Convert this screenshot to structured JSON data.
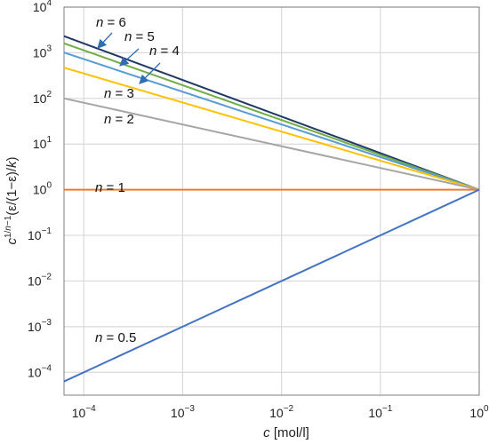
{
  "chart_data": {
    "type": "line",
    "xscale": "log",
    "yscale": "log",
    "xlim": [
      6.31e-05,
      1
    ],
    "ylim": [
      3.16e-05,
      10000
    ],
    "grid": true,
    "xlabel_var": "c",
    "xlabel_unit": " [mol/l]",
    "ylabel": "c^{1/n−1}(ε/(1−ε)/k)",
    "x_ticks": [
      {
        "base": "10",
        "exp": "−4",
        "value": 0.0001
      },
      {
        "base": "10",
        "exp": "−3",
        "value": 0.001
      },
      {
        "base": "10",
        "exp": "−2",
        "value": 0.01
      },
      {
        "base": "10",
        "exp": "−1",
        "value": 0.1
      },
      {
        "base": "10",
        "exp": "0",
        "value": 1
      }
    ],
    "y_ticks": [
      {
        "base": "10",
        "exp": "4",
        "value": 10000
      },
      {
        "base": "10",
        "exp": "3",
        "value": 1000
      },
      {
        "base": "10",
        "exp": "2",
        "value": 100
      },
      {
        "base": "10",
        "exp": "1",
        "value": 10
      },
      {
        "base": "10",
        "exp": "0",
        "value": 1
      },
      {
        "base": "10",
        "exp": "−1",
        "value": 0.1
      },
      {
        "base": "10",
        "exp": "−2",
        "value": 0.01
      },
      {
        "base": "10",
        "exp": "−3",
        "value": 0.001
      },
      {
        "base": "10",
        "exp": "−4",
        "value": 0.0001
      }
    ],
    "series": [
      {
        "name": "n = 6",
        "n": 6,
        "color": "#1f3864",
        "x": [
          6.31e-05,
          1
        ],
        "y": [
          2318,
          1
        ]
      },
      {
        "name": "n = 5",
        "n": 5,
        "color": "#70ad47",
        "x": [
          6.31e-05,
          1
        ],
        "y": [
          1604,
          1
        ]
      },
      {
        "name": "n = 4",
        "n": 4,
        "color": "#5b9bd5",
        "x": [
          6.31e-05,
          1
        ],
        "y": [
          1009,
          1
        ]
      },
      {
        "name": "n = 3",
        "n": 3,
        "color": "#ffc000",
        "x": [
          6.31e-05,
          1
        ],
        "y": [
          472,
          1
        ]
      },
      {
        "name": "n = 2",
        "n": 2,
        "color": "#a5a5a5",
        "x": [
          6.31e-05,
          1
        ],
        "y": [
          100,
          1
        ]
      },
      {
        "name": "n = 1",
        "n": 1,
        "color": "#ed7d31",
        "x": [
          6.31e-05,
          1
        ],
        "y": [
          1,
          1
        ]
      },
      {
        "name": "n = 0.5",
        "n": 0.5,
        "color": "#4472c4",
        "x": [
          6.31e-05,
          1
        ],
        "y": [
          6.31e-05,
          1
        ]
      }
    ]
  }
}
